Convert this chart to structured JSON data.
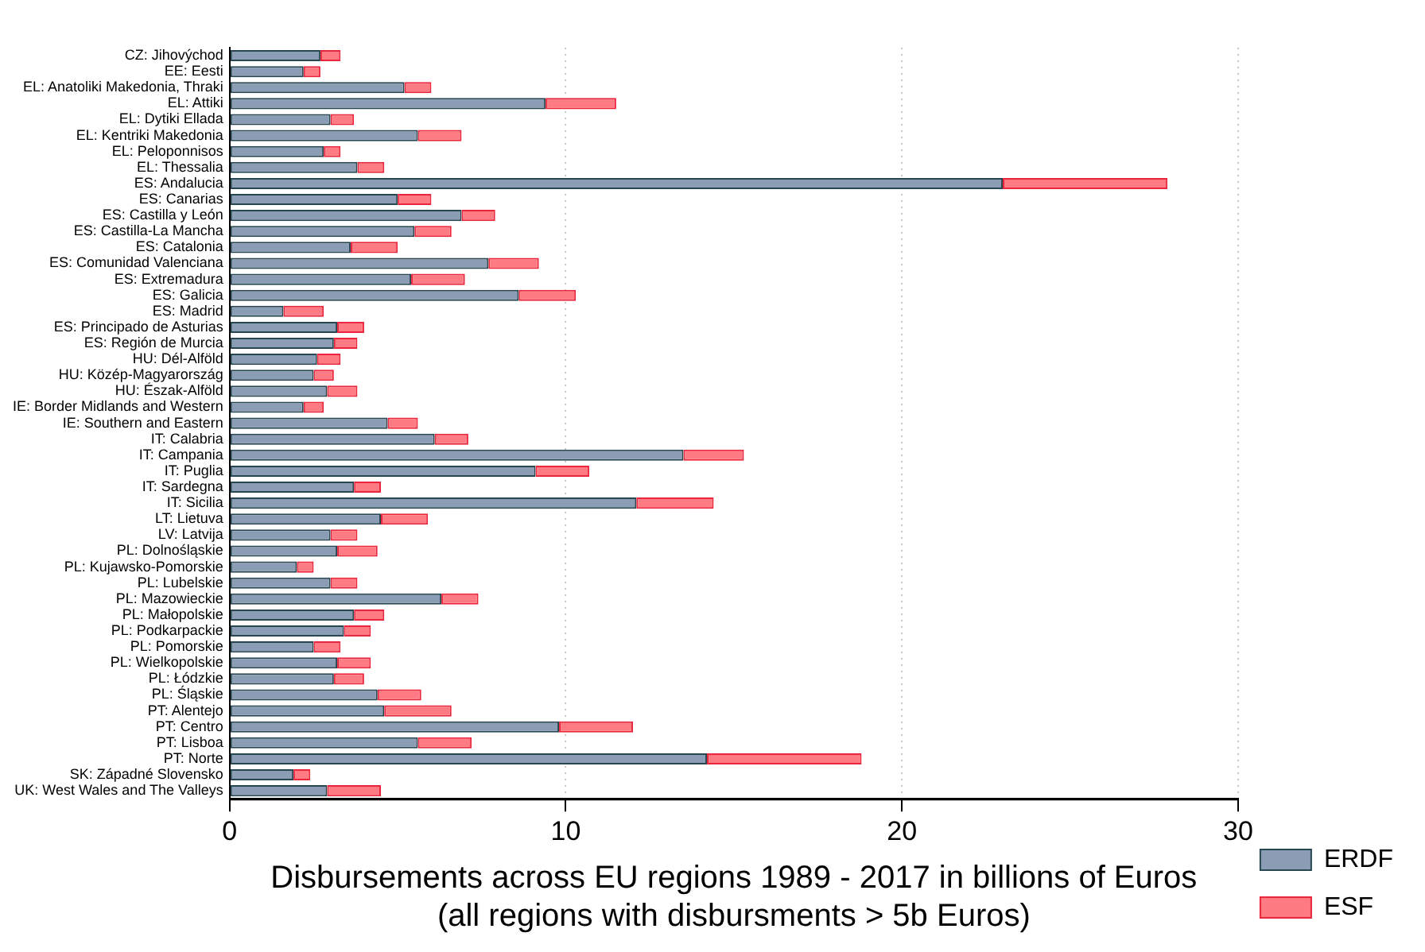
{
  "chart_data": {
    "type": "bar",
    "orientation": "horizontal",
    "stacked": true,
    "xlabel": "Disbursements across EU regions 1989 - 2017 in billions of Euros\n(all regions with disbursments > 5b Euros)",
    "categories": [
      "CZ: Jihovýchod",
      "EE: Eesti",
      "EL: Anatoliki Makedonia, Thraki",
      "EL: Attiki",
      "EL: Dytiki Ellada",
      "EL: Kentriki Makedonia",
      "EL: Peloponnisos",
      "EL: Thessalia",
      "ES: Andalucia",
      "ES: Canarias",
      "ES: Castilla y León",
      "ES: Castilla-La Mancha",
      "ES: Catalonia",
      "ES: Comunidad Valenciana",
      "ES: Extremadura",
      "ES: Galicia",
      "ES: Madrid",
      "ES: Principado de Asturias",
      "ES: Región de Murcia",
      "HU: Dél-Alföld",
      "HU: Közép-Magyarország",
      "HU: Észak-Alföld",
      "IE: Border Midlands and Western",
      "IE: Southern and Eastern",
      "IT: Calabria",
      "IT: Campania",
      "IT: Puglia",
      "IT: Sardegna",
      "IT: Sicilia",
      "LT: Lietuva",
      "LV: Latvija",
      "PL: Dolnośląskie",
      "PL: Kujawsko-Pomorskie",
      "PL: Lubelskie",
      "PL: Mazowieckie",
      "PL: Małopolskie",
      "PL: Podkarpackie",
      "PL: Pomorskie",
      "PL: Wielkopolskie",
      "PL: Łódzkie",
      "PL: Śląskie",
      "PT: Alentejo",
      "PT: Centro",
      "PT: Lisboa",
      "PT: Norte",
      "SK: Západné Slovensko",
      "UK: West Wales and The Valleys"
    ],
    "series": [
      {
        "name": "ERDF",
        "color": "#8a9db5",
        "values": [
          2.7,
          2.2,
          5.2,
          9.4,
          3.0,
          5.6,
          2.8,
          3.8,
          23.0,
          5.0,
          6.9,
          5.5,
          3.6,
          7.7,
          5.4,
          8.6,
          1.6,
          3.2,
          3.1,
          2.6,
          2.5,
          2.9,
          2.2,
          4.7,
          6.1,
          13.5,
          9.1,
          3.7,
          12.1,
          4.5,
          3.0,
          3.2,
          2.0,
          3.0,
          6.3,
          3.7,
          3.4,
          2.5,
          3.2,
          3.1,
          4.4,
          4.6,
          9.8,
          5.6,
          14.2,
          1.9,
          2.9
        ]
      },
      {
        "name": "ESF",
        "color": "#ff7b84",
        "values": [
          0.6,
          0.5,
          0.8,
          2.1,
          0.7,
          1.3,
          0.5,
          0.8,
          4.9,
          1.0,
          1.0,
          1.1,
          1.4,
          1.5,
          1.6,
          1.7,
          1.2,
          0.8,
          0.7,
          0.7,
          0.6,
          0.9,
          0.6,
          0.9,
          1.0,
          1.8,
          1.6,
          0.8,
          2.3,
          1.4,
          0.8,
          1.2,
          0.5,
          0.8,
          1.1,
          0.9,
          0.8,
          0.8,
          1.0,
          0.9,
          1.3,
          2.0,
          2.2,
          1.6,
          4.6,
          0.5,
          1.6
        ]
      }
    ],
    "xlim": [
      0,
      30
    ],
    "xticks": [
      0,
      10,
      20,
      30
    ],
    "grid": "x",
    "legend": "bottom right"
  }
}
